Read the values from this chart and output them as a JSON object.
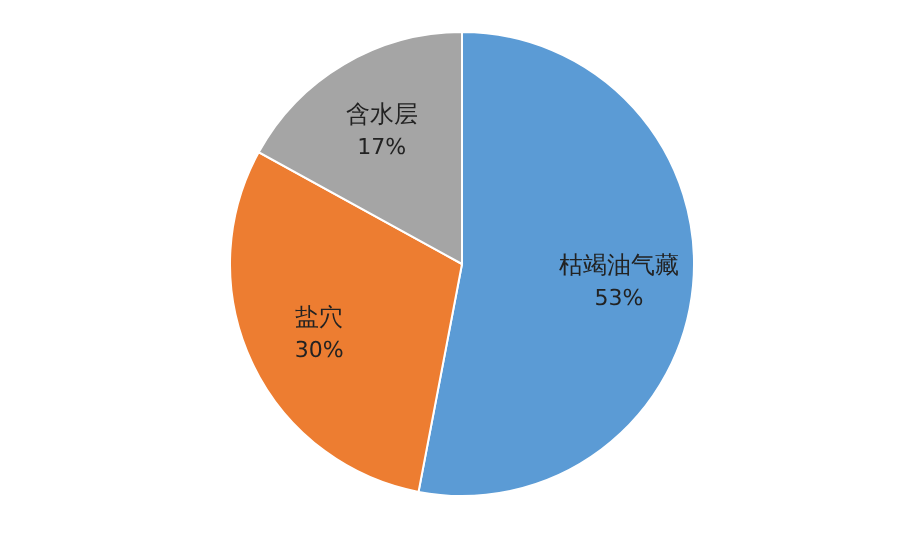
{
  "chart_data": {
    "type": "pie",
    "categories": [
      "枯竭油气藏",
      "盐穴",
      "含水层"
    ],
    "values": [
      53,
      30,
      17
    ],
    "value_labels": [
      "53%",
      "30%",
      "17%"
    ],
    "colors": [
      "#5b9bd5",
      "#ed7d31",
      "#a5a5a5"
    ]
  }
}
